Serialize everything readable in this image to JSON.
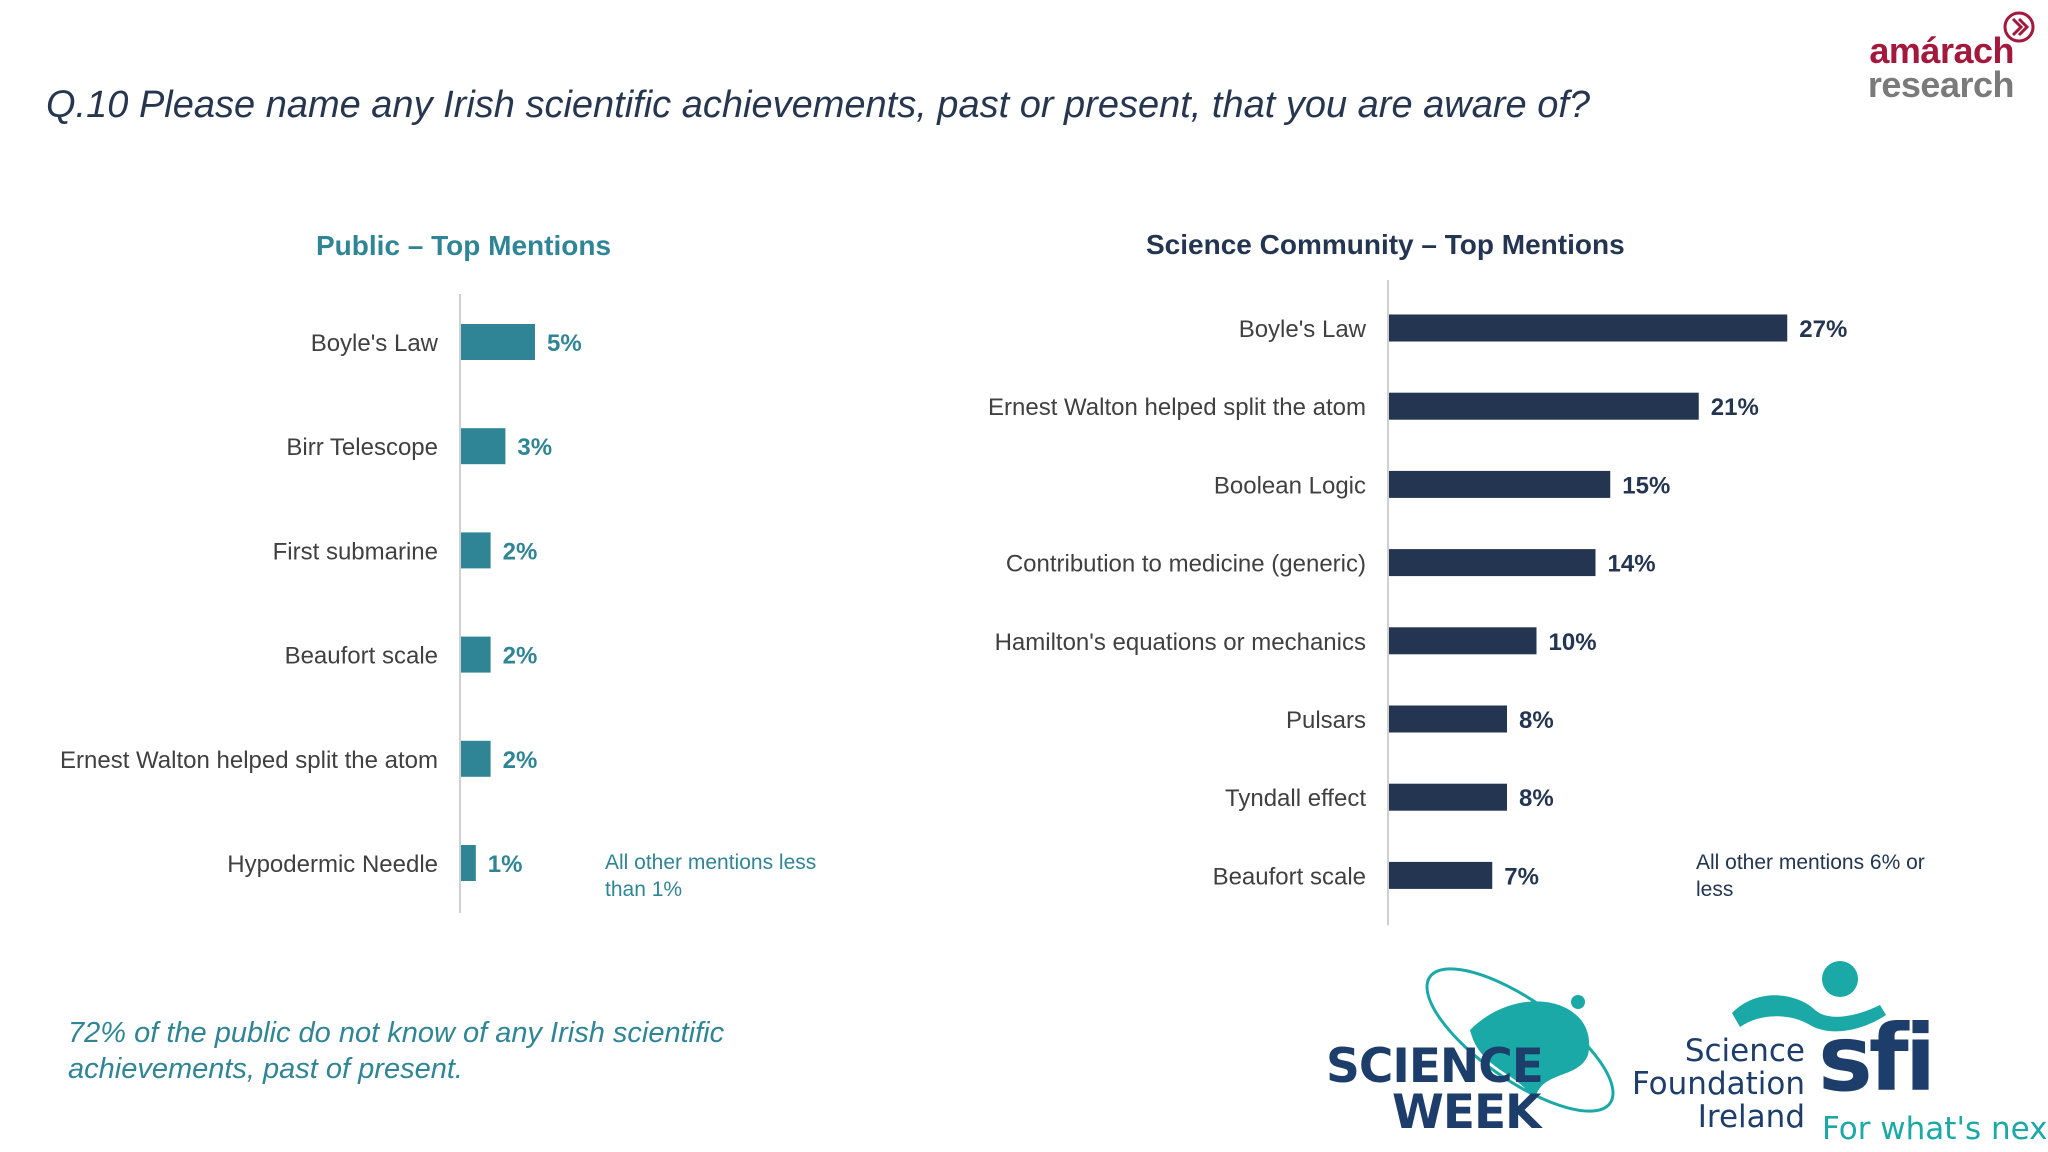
{
  "question": "Q.10 Please name any Irish scientific achievements, past or present, that you are aware of?",
  "logo_amarach": {
    "line1": "amárach",
    "line2": "research"
  },
  "colors": {
    "public": "#2f8596",
    "community": "#233550",
    "axis": "#d0d0d0",
    "label": "#404040"
  },
  "chart_data": [
    {
      "type": "bar",
      "orientation": "horizontal",
      "title": "Public – Top Mentions",
      "categories": [
        "Boyle's Law",
        "Birr Telescope",
        "First submarine",
        "Beaufort scale",
        "Ernest Walton helped split the atom",
        "Hypodermic Needle"
      ],
      "values": [
        5,
        3,
        2,
        2,
        2,
        1
      ],
      "labels": [
        "5%",
        "3%",
        "2%",
        "2%",
        "2%",
        "1%"
      ],
      "unit": "%",
      "note": "All other mentions less than 1%"
    },
    {
      "type": "bar",
      "orientation": "horizontal",
      "title": "Science Community – Top Mentions",
      "categories": [
        "Boyle's Law",
        "Ernest Walton helped split the atom",
        "Boolean Logic",
        "Contribution to medicine (generic)",
        "Hamilton's equations or mechanics",
        "Pulsars",
        "Tyndall effect",
        "Beaufort scale"
      ],
      "values": [
        27,
        21,
        15,
        14,
        10,
        8,
        8,
        7
      ],
      "labels": [
        "27%",
        "21%",
        "15%",
        "14%",
        "10%",
        "8%",
        "8%",
        "7%"
      ],
      "unit": "%",
      "note": "All other mentions 6% or less"
    }
  ],
  "footnote": "72% of the public do not know of any Irish scientific achievements, past of present.",
  "logo_science_week": {
    "line1": "SCIENCE",
    "line2": "WEEK"
  },
  "logo_sfi": {
    "words": [
      "Science",
      "Foundation",
      "Ireland"
    ],
    "mark": "sfi",
    "tagline": "For what's next"
  }
}
